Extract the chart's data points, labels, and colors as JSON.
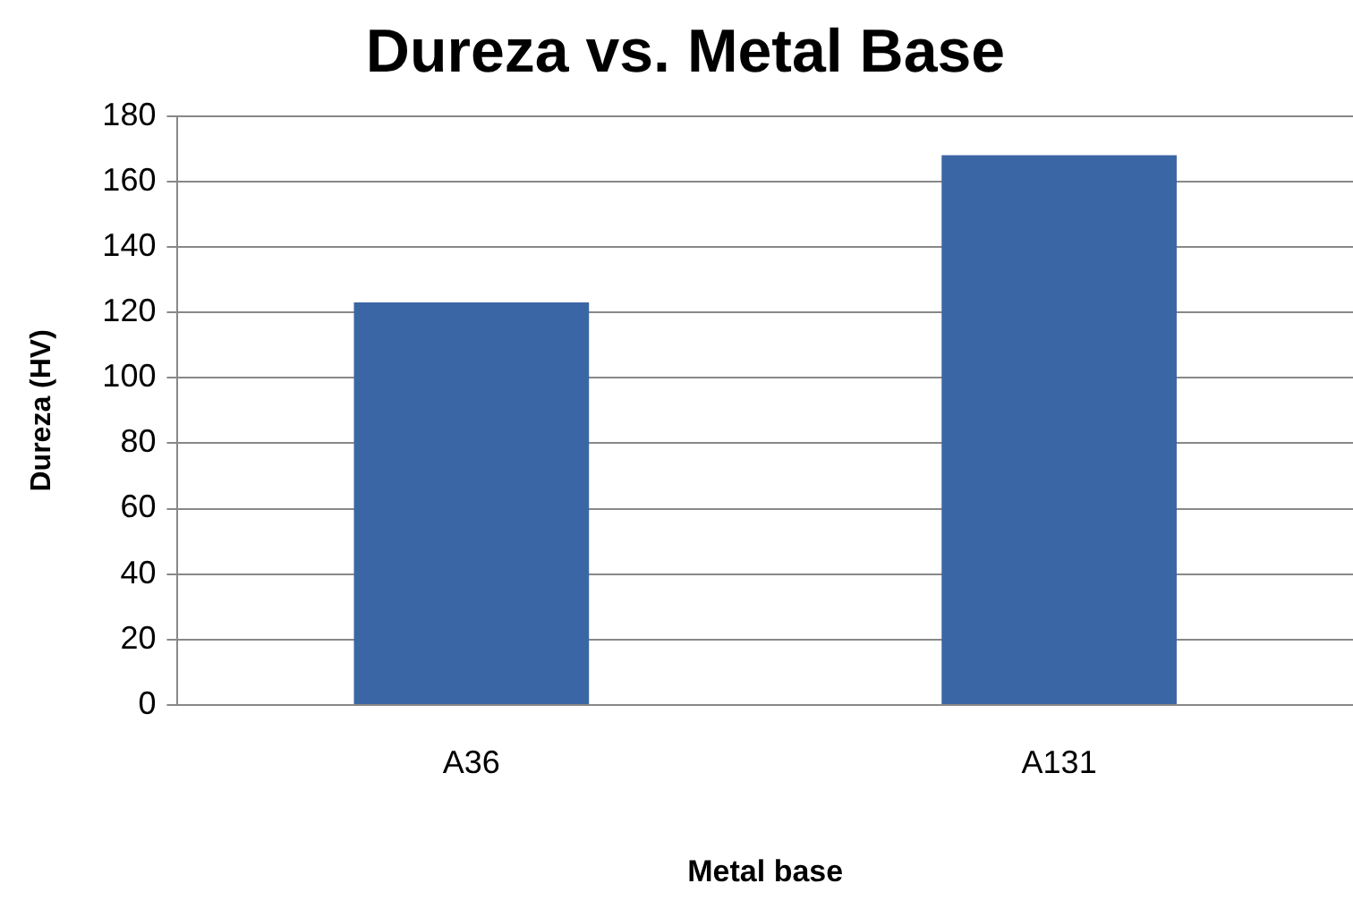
{
  "chart_data": {
    "type": "bar",
    "title": "Dureza vs. Metal Base",
    "xlabel": "Metal base",
    "ylabel": "Dureza (HV)",
    "categories": [
      "A36",
      "A131"
    ],
    "values": [
      123,
      168
    ],
    "color": "#3b66a6",
    "ylim": [
      0,
      180
    ],
    "yticks": [
      0,
      20,
      40,
      60,
      80,
      100,
      120,
      140,
      160,
      180
    ],
    "grid": "y",
    "legend": false
  }
}
